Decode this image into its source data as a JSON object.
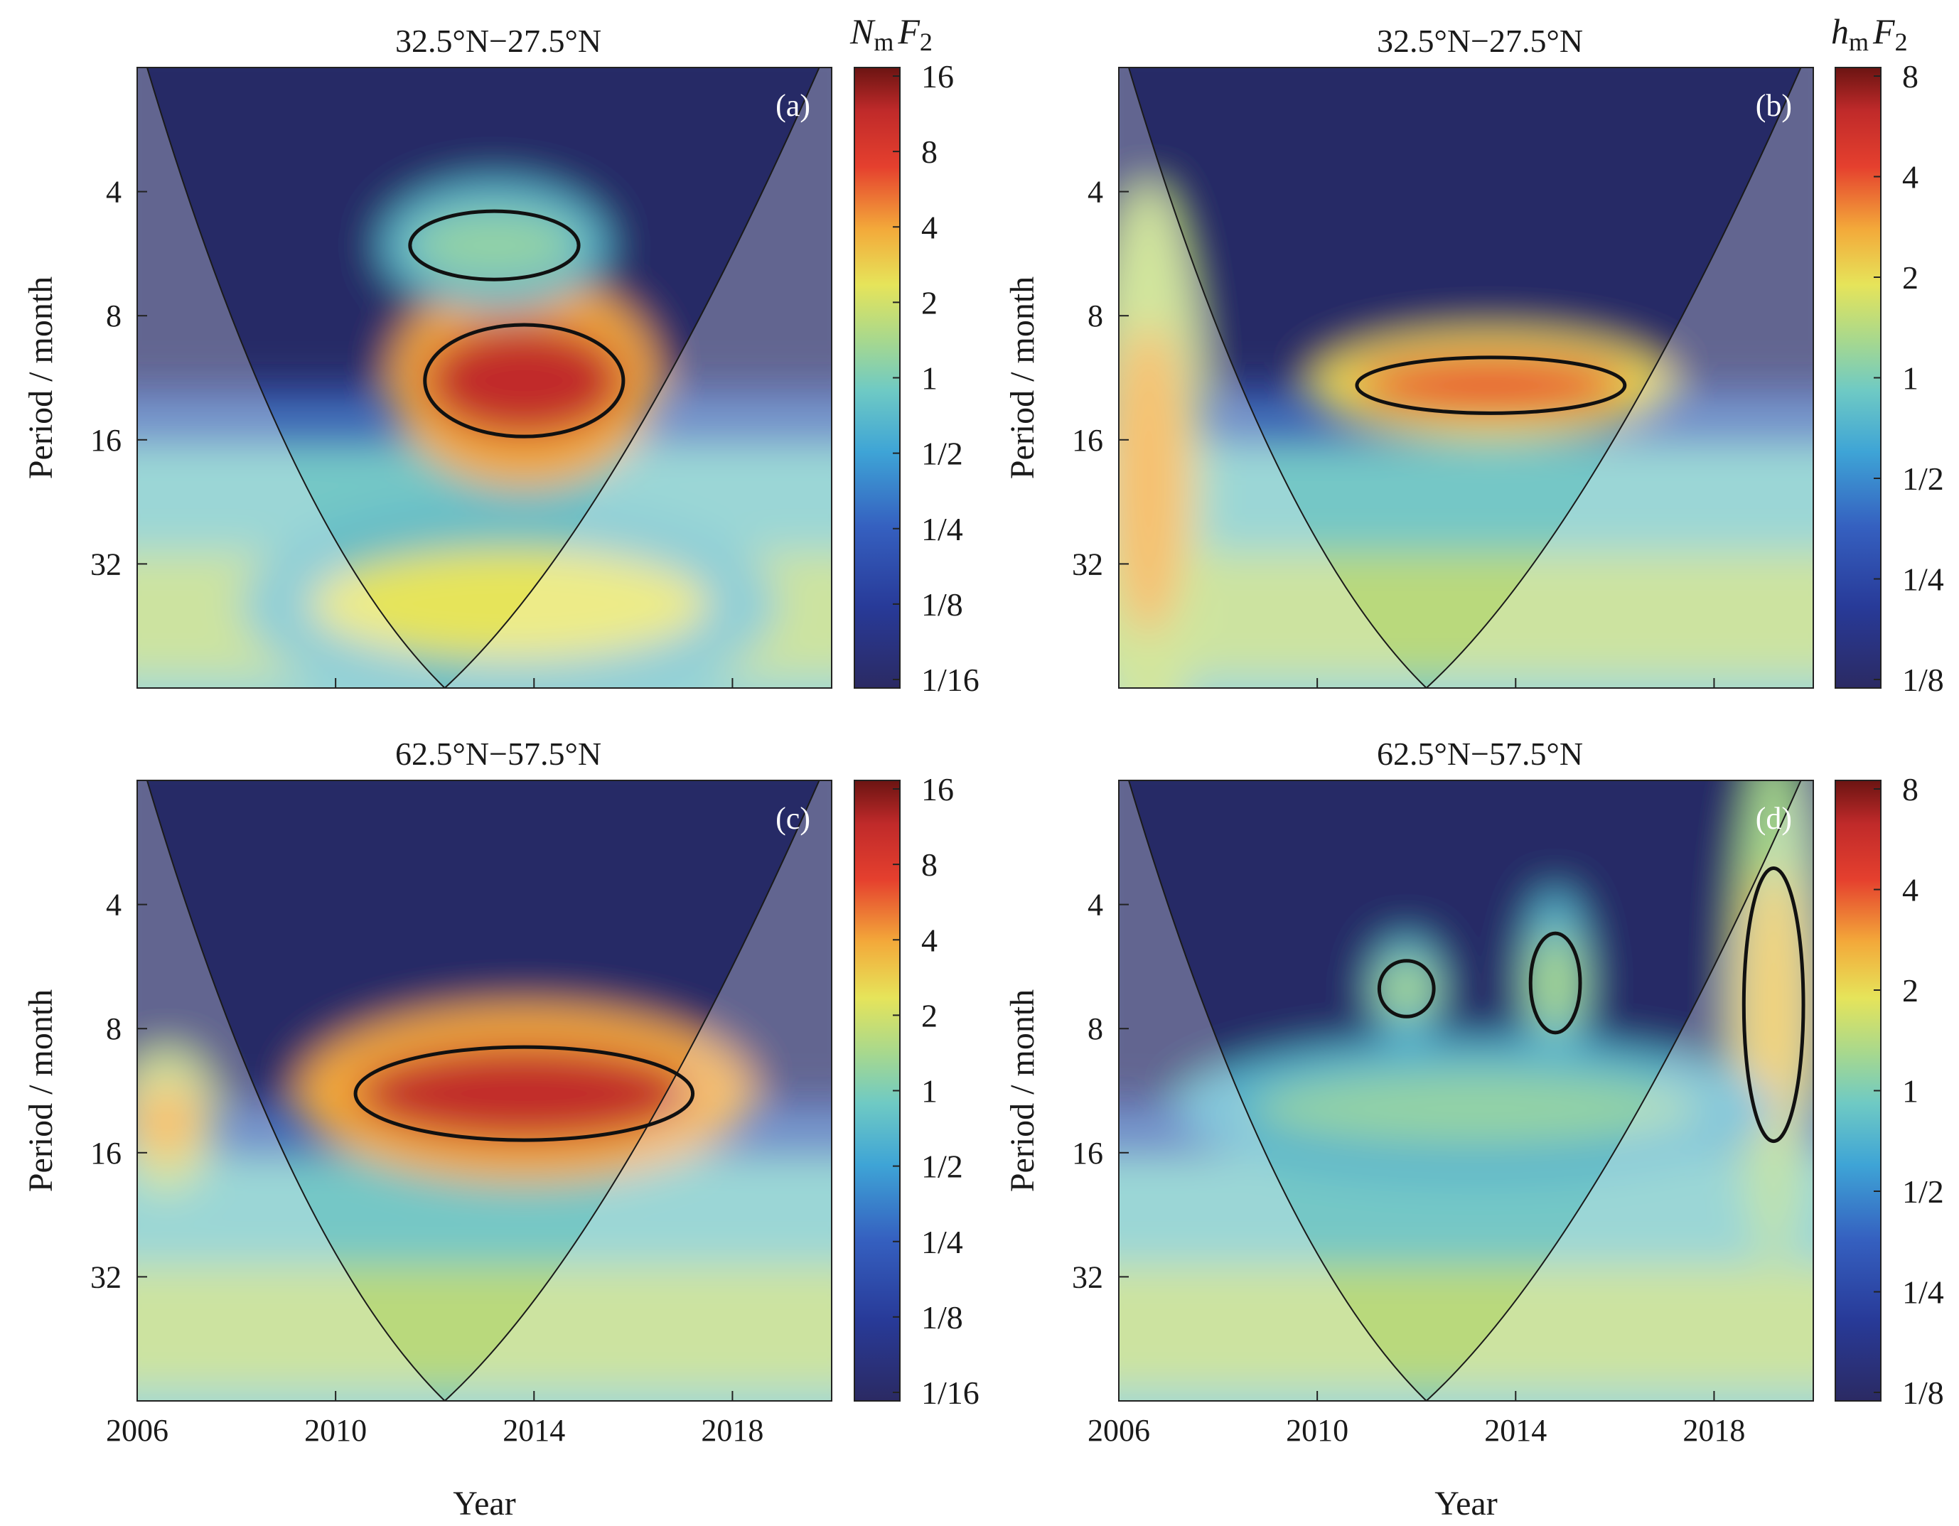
{
  "chart_data": [
    {
      "type": "heatmap",
      "panel_label": "(a)",
      "title": "32.5°N−27.5°N",
      "xlabel": "",
      "ylabel": "Period / month",
      "xlim": [
        2006,
        2020
      ],
      "x_ticks": [
        2006,
        2010,
        2014,
        2018
      ],
      "x_tick_labels": [
        "",
        "",
        "",
        ""
      ],
      "ylim": [
        2,
        64
      ],
      "y_scale": "log2",
      "y_ticks": [
        4,
        8,
        16,
        32
      ],
      "y_tick_labels": [
        "4",
        "8",
        "16",
        "32"
      ],
      "colorbar": {
        "title_main": "N",
        "title_sub": "m",
        "title_rest": "F",
        "title_sub2": "2",
        "ticks": [
          "16",
          "8",
          "4",
          "2",
          "1",
          "1/2",
          "1/4",
          "1/8",
          "1/16"
        ]
      },
      "cone_of_influence": true,
      "features": [
        {
          "center_year": 2013.8,
          "center_period": 11.5,
          "x_span": 4.0,
          "y_span_octaves": 0.9,
          "power": 12,
          "significant": true
        },
        {
          "center_year": 2013.2,
          "center_period": 5.4,
          "x_span": 3.4,
          "y_span_octaves": 0.55,
          "power": 0.9,
          "significant": true
        },
        {
          "center_year": 2013.5,
          "center_period": 40,
          "x_span": 8.0,
          "y_span_octaves": 0.9,
          "power": 2,
          "significant": false
        }
      ]
    },
    {
      "type": "heatmap",
      "panel_label": "(b)",
      "title": "32.5°N−27.5°N",
      "xlabel": "",
      "ylabel": "Period / month",
      "xlim": [
        2006,
        2020
      ],
      "x_ticks": [
        2006,
        2010,
        2014,
        2018
      ],
      "x_tick_labels": [
        "",
        "",
        "",
        ""
      ],
      "ylim": [
        2,
        64
      ],
      "y_scale": "log2",
      "y_ticks": [
        4,
        8,
        16,
        32
      ],
      "y_tick_labels": [
        "4",
        "8",
        "16",
        "32"
      ],
      "colorbar": {
        "title_main": "h",
        "title_sub": "m",
        "title_rest": "F",
        "title_sub2": "2",
        "ticks": [
          "8",
          "4",
          "2",
          "1",
          "1/2",
          "1/4",
          "1/8"
        ]
      },
      "cone_of_influence": true,
      "features": [
        {
          "center_year": 2013.5,
          "center_period": 11.8,
          "x_span": 5.4,
          "y_span_octaves": 0.45,
          "power": 7,
          "significant": true
        },
        {
          "center_year": 2006.6,
          "center_period": 20,
          "x_span": 1.6,
          "y_span_octaves": 2.5,
          "power": 4,
          "significant": false
        }
      ]
    },
    {
      "type": "heatmap",
      "panel_label": "(c)",
      "title": "62.5°N−57.5°N",
      "xlabel": "Year",
      "ylabel": "Period / month",
      "xlim": [
        2006,
        2020
      ],
      "x_ticks": [
        2006,
        2010,
        2014,
        2018
      ],
      "x_tick_labels": [
        "2006",
        "2010",
        "2014",
        "2018"
      ],
      "ylim": [
        2,
        64
      ],
      "y_scale": "log2",
      "y_ticks": [
        4,
        8,
        16,
        32
      ],
      "y_tick_labels": [
        "4",
        "8",
        "16",
        "32"
      ],
      "colorbar": {
        "title_main": "",
        "title_sub": "",
        "title_rest": "",
        "title_sub2": "",
        "ticks": [
          "16",
          "8",
          "4",
          "2",
          "1",
          "1/2",
          "1/4",
          "1/8",
          "1/16"
        ]
      },
      "cone_of_influence": true,
      "features": [
        {
          "center_year": 2013.8,
          "center_period": 11.5,
          "x_span": 6.8,
          "y_span_octaves": 0.75,
          "power": 12,
          "significant": true
        },
        {
          "center_year": 2006.6,
          "center_period": 13.5,
          "x_span": 1.4,
          "y_span_octaves": 0.6,
          "power": 4,
          "significant": false
        }
      ]
    },
    {
      "type": "heatmap",
      "panel_label": "(d)",
      "title": "62.5°N−57.5°N",
      "xlabel": "Year",
      "ylabel": "Period / month",
      "xlim": [
        2006,
        2020
      ],
      "x_ticks": [
        2006,
        2010,
        2014,
        2018
      ],
      "x_tick_labels": [
        "2006",
        "2010",
        "2014",
        "2018"
      ],
      "ylim": [
        2,
        64
      ],
      "y_scale": "log2",
      "y_ticks": [
        4,
        8,
        16,
        32
      ],
      "y_tick_labels": [
        "4",
        "8",
        "16",
        "32"
      ],
      "colorbar": {
        "title_main": "",
        "title_sub": "",
        "title_rest": "",
        "title_sub2": "",
        "ticks": [
          "8",
          "4",
          "2",
          "1",
          "1/2",
          "1/4",
          "1/8"
        ]
      },
      "cone_of_influence": true,
      "features": [
        {
          "center_year": 2019.2,
          "center_period": 7,
          "x_span": 1.2,
          "y_span_octaves": 2.2,
          "power": 3,
          "significant": true
        },
        {
          "center_year": 2011.8,
          "center_period": 6.4,
          "x_span": 1.1,
          "y_span_octaves": 0.45,
          "power": 1,
          "significant": true
        },
        {
          "center_year": 2014.8,
          "center_period": 6.2,
          "x_span": 1.0,
          "y_span_octaves": 0.8,
          "power": 1,
          "significant": true
        },
        {
          "center_year": 2013.2,
          "center_period": 12.5,
          "x_span": 9.0,
          "y_span_octaves": 0.6,
          "power": 0.9,
          "significant": false
        }
      ]
    }
  ]
}
